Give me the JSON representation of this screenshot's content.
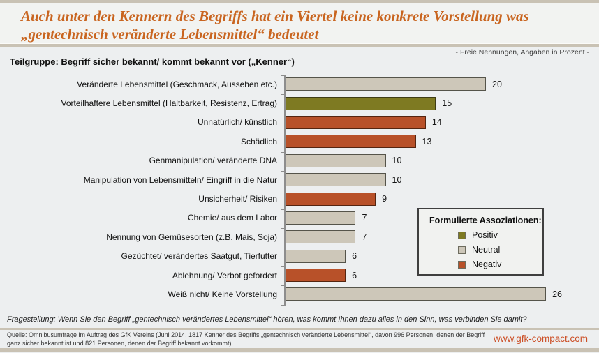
{
  "header": {
    "title_line1": "Auch unter den Kennern des Begriffs hat ein Viertel  keine konkrete Vorstellung was",
    "title_line2": "„gentechnisch veränderte Lebensmittel“ bedeutet",
    "note_right": "- Freie Nennungen, Angaben in Prozent -",
    "subgroup": "Teilgruppe: Begriff sicher bekannt/ kommt bekannt vor („Kenner“)"
  },
  "chart_data": {
    "type": "bar",
    "orientation": "horizontal",
    "title": "Auch unter den Kennern des Begriffs hat ein Viertel keine konkrete Vorstellung was „gentechnisch veränderte Lebensmittel“ bedeutet",
    "unit": "Prozent",
    "xlim": [
      0,
      28
    ],
    "grid": false,
    "categories": [
      "Veränderte Lebensmittel (Geschmack, Aussehen etc.)",
      "Vorteilhaftere Lebensmittel (Haltbarkeit, Resistenz, Ertrag)",
      "Unnatürlich/ künstlich",
      "Schädlich",
      "Genmanipulation/ veränderte DNA",
      "Manipulation von Lebensmitteln/ Eingriff in die Natur",
      "Unsicherheit/ Risiken",
      "Chemie/ aus dem Labor",
      "Nennung von Gemüsesorten (z.B. Mais, Soja)",
      "Gezüchtet/ verändertes Saatgut, Tierfutter",
      "Ablehnung/ Verbot gefordert",
      "Weiß nicht/ Keine Vorstellung"
    ],
    "values": [
      20,
      15,
      14,
      13,
      10,
      10,
      9,
      7,
      7,
      6,
      6,
      26
    ],
    "sentiments": [
      "Neutral",
      "Positiv",
      "Negativ",
      "Negativ",
      "Neutral",
      "Neutral",
      "Negativ",
      "Neutral",
      "Neutral",
      "Neutral",
      "Negativ",
      "Neutral"
    ],
    "colors": {
      "Positiv": "#7e7a22",
      "Neutral": "#cdc7b9",
      "Negativ": "#b85129"
    },
    "border_colors": {
      "Positiv": "#3e3c14",
      "Neutral": "#55544a",
      "Negativ": "#552510"
    },
    "legend_position": "right-middle"
  },
  "legend": {
    "title": "Formulierte Assoziationen:",
    "items": [
      {
        "label": "Positiv",
        "color": "#7e7a22"
      },
      {
        "label": "Neutral",
        "color": "#cdc7b9"
      },
      {
        "label": "Negativ",
        "color": "#b85129"
      }
    ]
  },
  "footer": {
    "question": "Fragestellung: Wenn Sie den Begriff „gentechnisch verändertes Lebensmittel“ hören, was kommt Ihnen dazu alles in den Sinn, was verbinden Sie damit?",
    "source": "Quelle: Omnibusumfrage im Auftrag des GfK Vereins (Juni 2014, 1817 Kenner des Begriffs „gentechnisch veränderte Lebensmittel“, davon 996 Personen, denen der Begriff ganz sicher bekannt ist und 821 Personen, denen der Begriff bekannt vorkommt)",
    "website": "www.gfk-compact.com"
  },
  "colors": {
    "title_accent": "#c96520",
    "link": "#cc4f26",
    "band": "#c9c2b4",
    "background": "#edeff0",
    "axis": "#8d8d8d"
  }
}
